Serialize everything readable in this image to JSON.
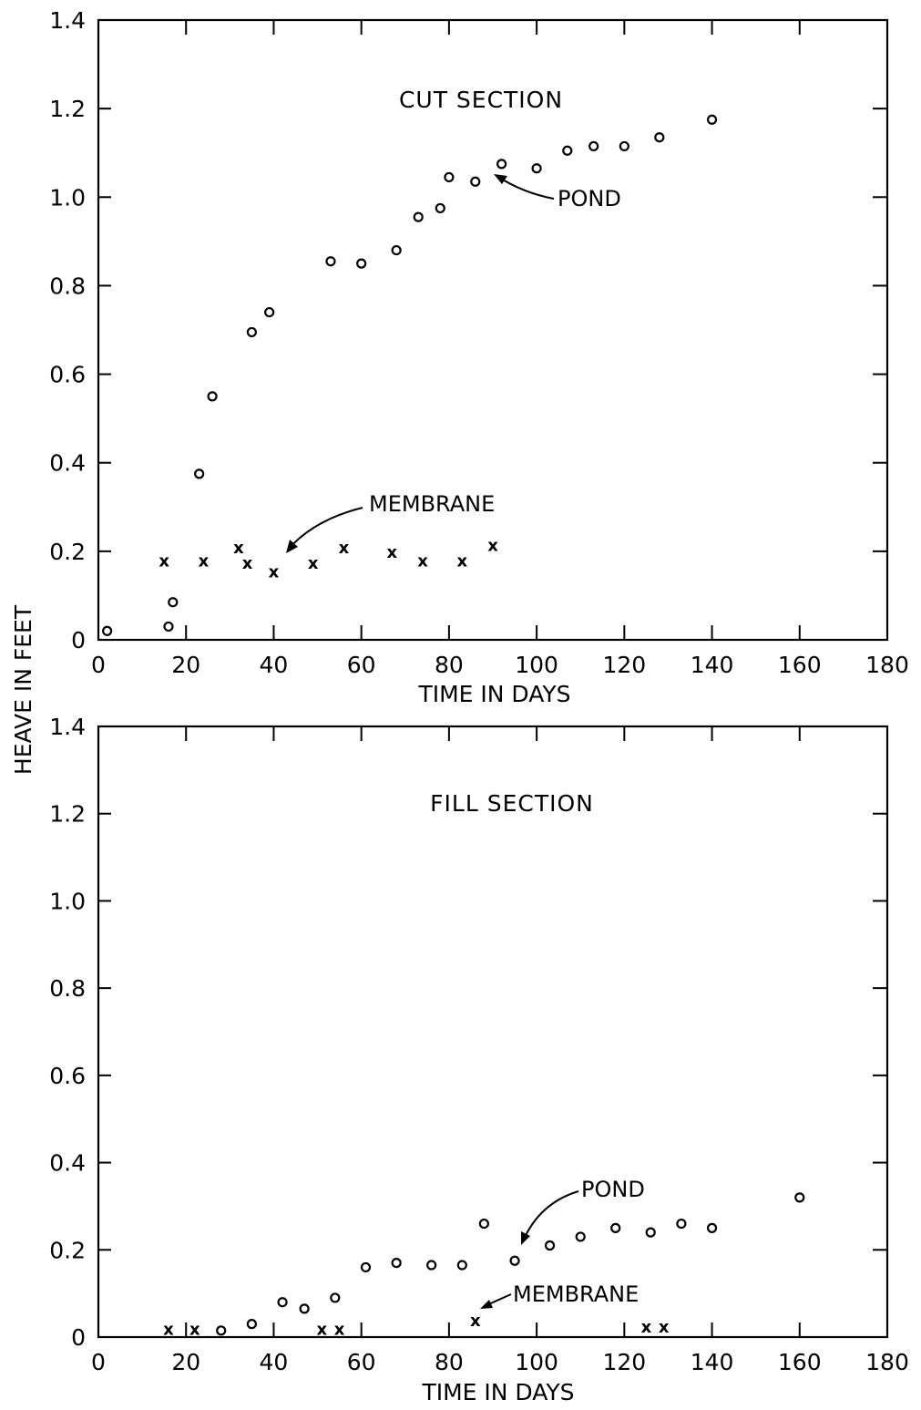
{
  "chart_data": [
    {
      "type": "scatter",
      "title": "CUT SECTION",
      "xlabel": "TIME IN DAYS",
      "ylabel": "HEAVE IN FEET",
      "xlim": [
        0,
        180
      ],
      "ylim": [
        0,
        1.4
      ],
      "xticks": [
        "0",
        "20",
        "40",
        "60",
        "80",
        "100",
        "120",
        "140",
        "160",
        "180"
      ],
      "yticks": [
        "0",
        "0.2",
        "0.4",
        "0.6",
        "0.8",
        "1.0",
        "1.2",
        "1.4"
      ],
      "grid": false,
      "series": [
        {
          "name": "POND",
          "marker": "circle",
          "x": [
            2,
            16,
            17,
            23,
            26,
            35,
            39,
            53,
            60,
            68,
            73,
            78,
            80,
            86,
            92,
            100,
            107,
            113,
            120,
            128,
            140
          ],
          "y": [
            0.02,
            0.03,
            0.085,
            0.375,
            0.55,
            0.695,
            0.74,
            0.855,
            0.85,
            0.88,
            0.955,
            0.975,
            1.045,
            1.035,
            1.075,
            1.065,
            1.105,
            1.115,
            1.115,
            1.135,
            1.175
          ]
        },
        {
          "name": "MEMBRANE",
          "marker": "x",
          "x": [
            15,
            24,
            32,
            34,
            40,
            49,
            56,
            67,
            74,
            83,
            90
          ],
          "y": [
            0.18,
            0.18,
            0.21,
            0.175,
            0.155,
            0.175,
            0.21,
            0.2,
            0.18,
            0.18,
            0.215
          ]
        }
      ],
      "annotations": [
        {
          "text": "POND",
          "x": 93,
          "y": 1.05
        },
        {
          "text": "MEMBRANE",
          "x": 44,
          "y": 0.2
        }
      ]
    },
    {
      "type": "scatter",
      "title": "FILL SECTION",
      "xlabel": "TIME IN DAYS",
      "ylabel": "HEAVE IN FEET",
      "xlim": [
        0,
        180
      ],
      "ylim": [
        0,
        1.4
      ],
      "xticks": [
        "0",
        "20",
        "40",
        "60",
        "80",
        "100",
        "120",
        "140",
        "160",
        "180"
      ],
      "yticks": [
        "0",
        "0.2",
        "0.4",
        "0.6",
        "0.8",
        "1.0",
        "1.2",
        "1.4"
      ],
      "grid": false,
      "series": [
        {
          "name": "POND",
          "marker": "circle",
          "x": [
            28,
            35,
            42,
            47,
            54,
            61,
            68,
            76,
            83,
            88,
            95,
            103,
            110,
            118,
            126,
            133,
            140,
            160
          ],
          "y": [
            0.015,
            0.03,
            0.08,
            0.065,
            0.09,
            0.16,
            0.17,
            0.165,
            0.165,
            0.26,
            0.175,
            0.21,
            0.23,
            0.25,
            0.24,
            0.26,
            0.25,
            0.32
          ]
        },
        {
          "name": "MEMBRANE",
          "marker": "x",
          "x": [
            16,
            22,
            51,
            55,
            86,
            125,
            129
          ],
          "y": [
            0.02,
            0.02,
            0.02,
            0.02,
            0.04,
            0.025,
            0.025
          ]
        }
      ],
      "annotations": [
        {
          "text": "POND",
          "x": 97,
          "y": 0.21
        },
        {
          "text": "MEMBRANE",
          "x": 87,
          "y": 0.07
        }
      ]
    }
  ]
}
